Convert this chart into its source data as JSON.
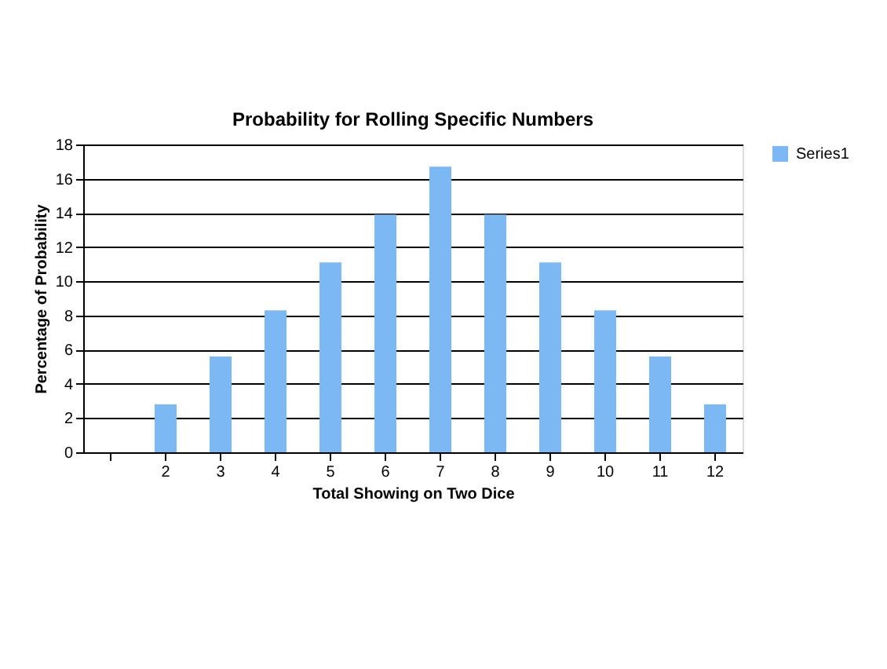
{
  "chart_data": {
    "type": "bar",
    "title": "Probability for Rolling Specific Numbers",
    "xlabel": "Total Showing on Two Dice",
    "ylabel": "Percentage of Probability",
    "categories": [
      null,
      "2",
      "3",
      "4",
      "5",
      "6",
      "7",
      "8",
      "9",
      "10",
      "11",
      "12"
    ],
    "series": [
      {
        "name": "Series1",
        "color": "#7cb8f4",
        "values": [
          null,
          2.8,
          5.6,
          8.3,
          11.1,
          13.9,
          16.7,
          13.9,
          11.1,
          8.3,
          5.6,
          2.8
        ]
      }
    ],
    "ylim": [
      0,
      18
    ],
    "yticks": [
      0,
      2,
      4,
      6,
      8,
      10,
      12,
      14,
      16,
      18
    ],
    "grid": "y",
    "legend": "right"
  }
}
